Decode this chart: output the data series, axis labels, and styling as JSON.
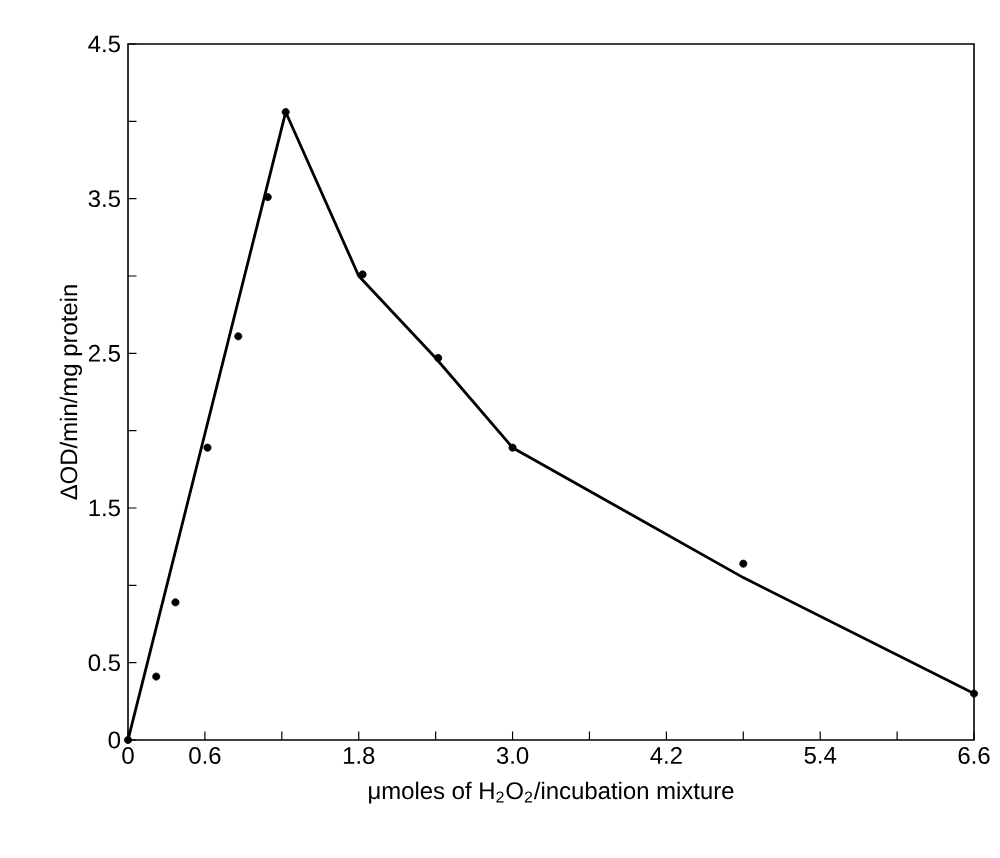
{
  "chart_data": {
    "type": "scatter",
    "xlabel": "μmoles of H$_{2}$O$_{2}$/incubation mixture",
    "ylabel": "ΔOD/min/mg protein",
    "xlim": [
      0,
      6.6
    ],
    "ylim": [
      0,
      4.5
    ],
    "xticks": [
      0,
      0.6,
      {
        "value": 1.2,
        "label": null
      },
      1.8,
      {
        "value": 2.4,
        "label": null
      },
      {
        "value": 3.0,
        "label": "3.0"
      },
      {
        "value": 3.6,
        "label": null
      },
      4.2,
      {
        "value": 4.8,
        "label": null
      },
      5.4,
      {
        "value": 6.0,
        "label": null
      },
      6.6
    ],
    "yticks": [
      0,
      0.5,
      {
        "value": 1,
        "label": null
      },
      1.5,
      {
        "value": 2,
        "label": null
      },
      2.5,
      {
        "value": 3,
        "label": null
      },
      3.5,
      {
        "value": 4,
        "label": null
      },
      4.5
    ],
    "grid": false,
    "series": [
      {
        "color": "#000000",
        "x": [
          0,
          0.22,
          0.37,
          0.62,
          0.86,
          1.09,
          1.23,
          1.83,
          2.42,
          3.0,
          4.8,
          6.6
        ],
        "values": [
          0,
          0.41,
          0.89,
          1.89,
          2.61,
          3.51,
          4.06,
          3.01,
          2.47,
          1.89,
          1.14,
          0.3
        ]
      },
      {
        "type": "line",
        "color": "#000000",
        "x": [
          0,
          1.23,
          1.8,
          2.4,
          3.0,
          4.8,
          6.6
        ],
        "values": [
          0,
          4.06,
          3.0,
          2.47,
          1.89,
          1.05,
          0.3
        ]
      }
    ]
  }
}
